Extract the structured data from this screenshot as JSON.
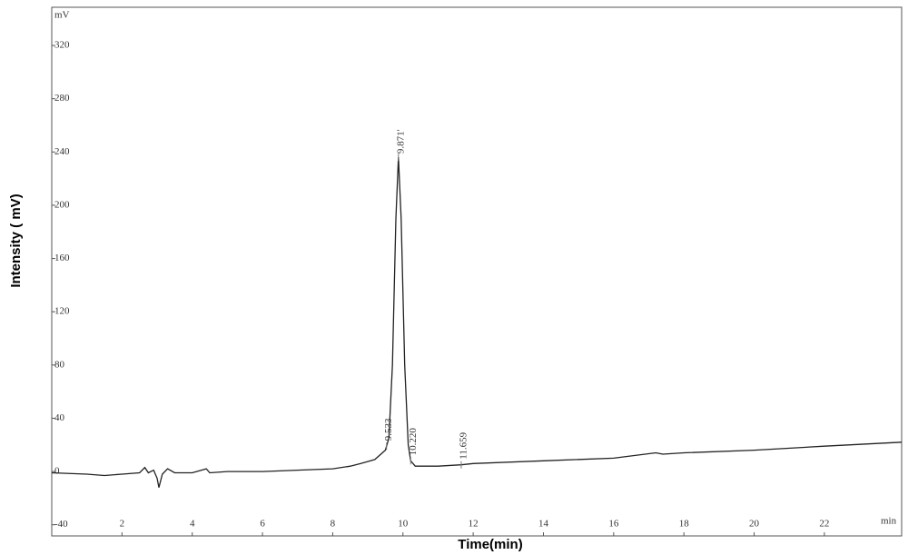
{
  "chart_data": {
    "type": "line",
    "y_unit": "mV",
    "x_unit": "min",
    "xlabel": "Time(min)",
    "ylabel": "Intensity ( mV)",
    "xlim": [
      0,
      24.2
    ],
    "xticks": [
      2,
      4,
      6,
      8,
      10,
      12,
      14,
      16,
      18,
      20,
      22
    ],
    "ylim": [
      -48.4,
      348.7
    ],
    "yticks": [
      -40,
      0,
      40,
      80,
      120,
      160,
      200,
      240,
      280,
      320
    ],
    "series": [
      {
        "color": "#222222",
        "x": [
          0,
          1,
          1.5,
          2,
          2.5,
          2.65,
          2.75,
          2.9,
          3.0,
          3.05,
          3.15,
          3.3,
          3.5,
          4.0,
          4.4,
          4.5,
          5,
          6,
          7,
          8,
          8.5,
          8.8,
          9.2,
          9.5,
          9.6,
          9.7,
          9.8,
          9.871,
          9.95,
          10.05,
          10.15,
          10.22,
          10.35,
          11,
          11.659,
          12,
          14,
          16,
          17.2,
          17.4,
          18,
          20,
          22,
          24.2
        ],
        "values": [
          -1,
          -2,
          -3,
          -2,
          -1,
          3,
          -1,
          1,
          -5,
          -12,
          -2,
          2,
          -1,
          -1,
          2,
          -1,
          0,
          0,
          1,
          2,
          4,
          6,
          9,
          16,
          25,
          80,
          190,
          236,
          190,
          80,
          20,
          8,
          4,
          4,
          5,
          6,
          8,
          10,
          14,
          13,
          14,
          16,
          19,
          22
        ]
      }
    ],
    "annotations": [
      {
        "value": 9.533,
        "label": "9.533"
      },
      {
        "value": 9.871,
        "label": "9.871'"
      },
      {
        "value": 10.22,
        "label": "10.220"
      },
      {
        "value": 11.659,
        "label": "11.659"
      }
    ]
  }
}
